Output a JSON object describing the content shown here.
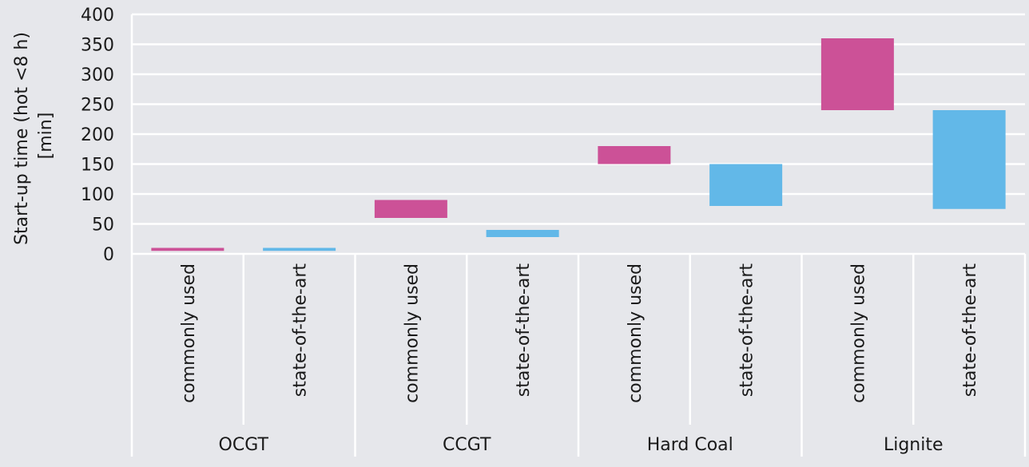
{
  "chart_data": {
    "type": "bar",
    "subtype": "floating-range",
    "ylabel": "Start-up time (hot <8 h) [min]",
    "ylabel_lines": [
      "Start-up time (hot <8 h)",
      "[min]"
    ],
    "ylim": [
      0,
      400
    ],
    "yticks": [
      0,
      50,
      100,
      150,
      200,
      250,
      300,
      350,
      400
    ],
    "grid": "horizontal",
    "groups": [
      "OCGT",
      "CCGT",
      "Hard Coal",
      "Lignite"
    ],
    "categories": [
      "commonly used",
      "state-of-the-art"
    ],
    "series": [
      {
        "name": "commonly used",
        "color": "#cc5197",
        "ranges": [
          [
            5,
            10
          ],
          [
            60,
            90
          ],
          [
            150,
            180
          ],
          [
            240,
            360
          ]
        ]
      },
      {
        "name": "state-of-the-art",
        "color": "#62b8e8",
        "ranges": [
          [
            5,
            10
          ],
          [
            28,
            40
          ],
          [
            80,
            150
          ],
          [
            75,
            240
          ]
        ]
      }
    ]
  }
}
